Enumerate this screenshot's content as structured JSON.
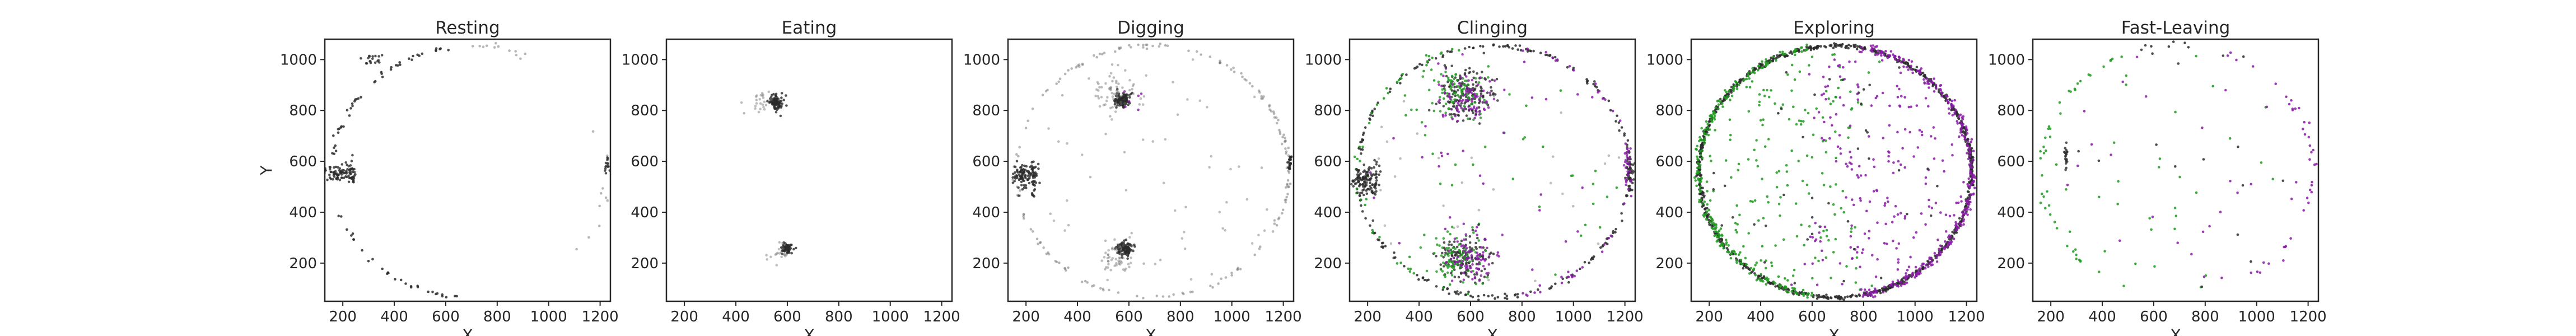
{
  "figure": {
    "palette": {
      "black": "#2b2b2b",
      "green": "#1f9b1f",
      "purple": "#8a1aa8",
      "gray": "#6e6e6e"
    }
  },
  "chart_data": [
    {
      "type": "scatter",
      "title": "Resting",
      "xlabel": "X",
      "ylabel": "Y",
      "xlim": [
        130,
        1240
      ],
      "ylim": [
        50,
        1080
      ],
      "xticks": [
        200,
        400,
        600,
        800,
        1000,
        1200
      ],
      "yticks": [
        200,
        400,
        600,
        800,
        1000
      ],
      "grid": false,
      "clusters": [
        {
          "color": "black",
          "x": 185,
          "y": 555,
          "sx": 25,
          "sy": 18,
          "n": 70
        },
        {
          "color": "black",
          "x": 235,
          "y": 545,
          "sx": 8,
          "sy": 30,
          "n": 25
        },
        {
          "color": "black",
          "x": 1225,
          "y": 580,
          "sx": 6,
          "sy": 20,
          "n": 14
        },
        {
          "color": "black",
          "x": 320,
          "y": 1000,
          "sx": 20,
          "sy": 12,
          "n": 18
        }
      ],
      "ring_points": [
        {
          "color": "black",
          "a0": 95,
          "a1": 175,
          "n": 45,
          "jitter": 6
        },
        {
          "color": "black",
          "a0": 200,
          "a1": 265,
          "n": 30,
          "jitter": 5
        },
        {
          "color": "gray",
          "a0": 60,
          "a1": 95,
          "n": 12,
          "jitter": 8
        },
        {
          "color": "gray",
          "a0": -40,
          "a1": 20,
          "n": 10,
          "jitter": 10
        }
      ],
      "scatter_points": []
    },
    {
      "type": "scatter",
      "title": "Eating",
      "xlabel": "X",
      "ylabel": "",
      "xlim": [
        130,
        1240
      ],
      "ylim": [
        50,
        1080
      ],
      "xticks": [
        200,
        400,
        600,
        800,
        1000,
        1200
      ],
      "yticks": [
        200,
        400,
        600,
        800,
        1000
      ],
      "grid": false,
      "clusters": [
        {
          "color": "black",
          "x": 555,
          "y": 830,
          "sx": 14,
          "sy": 14,
          "n": 90
        },
        {
          "color": "gray",
          "x": 500,
          "y": 840,
          "sx": 30,
          "sy": 25,
          "n": 25
        },
        {
          "color": "black",
          "x": 600,
          "y": 260,
          "sx": 10,
          "sy": 10,
          "n": 60
        },
        {
          "color": "gray",
          "x": 570,
          "y": 230,
          "sx": 20,
          "sy": 25,
          "n": 18
        }
      ],
      "ring_points": [],
      "scatter_points": []
    },
    {
      "type": "scatter",
      "title": "Digging",
      "xlabel": "X",
      "ylabel": "",
      "xlim": [
        130,
        1240
      ],
      "ylim": [
        50,
        1080
      ],
      "xticks": [
        200,
        400,
        600,
        800,
        1000,
        1200
      ],
      "yticks": [
        200,
        400,
        600,
        800,
        1000
      ],
      "grid": false,
      "clusters": [
        {
          "color": "black",
          "x": 185,
          "y": 540,
          "sx": 25,
          "sy": 25,
          "n": 90
        },
        {
          "color": "black",
          "x": 230,
          "y": 540,
          "sx": 8,
          "sy": 35,
          "n": 30
        },
        {
          "color": "black",
          "x": 575,
          "y": 840,
          "sx": 15,
          "sy": 14,
          "n": 110
        },
        {
          "color": "gray",
          "x": 545,
          "y": 870,
          "sx": 40,
          "sy": 35,
          "n": 60
        },
        {
          "color": "black",
          "x": 585,
          "y": 255,
          "sx": 15,
          "sy": 14,
          "n": 100
        },
        {
          "color": "gray",
          "x": 555,
          "y": 230,
          "sx": 40,
          "sy": 35,
          "n": 55
        },
        {
          "color": "black",
          "x": 1225,
          "y": 590,
          "sx": 6,
          "sy": 22,
          "n": 25
        },
        {
          "color": "purple",
          "x": 590,
          "y": 860,
          "sx": 40,
          "sy": 30,
          "n": 6
        }
      ],
      "ring_points": [
        {
          "color": "gray",
          "a0": 0,
          "a1": 360,
          "n": 180,
          "jitter": 5
        }
      ],
      "scatter_points": [
        {
          "color": "gray",
          "n": 60
        }
      ]
    },
    {
      "type": "scatter",
      "title": "Clinging",
      "xlabel": "X",
      "ylabel": "",
      "xlim": [
        130,
        1240
      ],
      "ylim": [
        50,
        1080
      ],
      "xticks": [
        200,
        400,
        600,
        800,
        1000,
        1200
      ],
      "yticks": [
        200,
        400,
        600,
        800,
        1000
      ],
      "grid": false,
      "clusters": [
        {
          "color": "black",
          "x": 185,
          "y": 525,
          "sx": 22,
          "sy": 30,
          "n": 80
        },
        {
          "color": "black",
          "x": 230,
          "y": 520,
          "sx": 8,
          "sy": 45,
          "n": 35
        },
        {
          "color": "black",
          "x": 575,
          "y": 860,
          "sx": 55,
          "sy": 50,
          "n": 160
        },
        {
          "color": "green",
          "x": 540,
          "y": 880,
          "sx": 55,
          "sy": 45,
          "n": 90
        },
        {
          "color": "purple",
          "x": 600,
          "y": 850,
          "sx": 55,
          "sy": 45,
          "n": 80
        },
        {
          "color": "black",
          "x": 575,
          "y": 225,
          "sx": 50,
          "sy": 45,
          "n": 140
        },
        {
          "color": "green",
          "x": 545,
          "y": 220,
          "sx": 50,
          "sy": 45,
          "n": 90
        },
        {
          "color": "purple",
          "x": 610,
          "y": 225,
          "sx": 50,
          "sy": 45,
          "n": 80
        },
        {
          "color": "black",
          "x": 1220,
          "y": 570,
          "sx": 8,
          "sy": 35,
          "n": 40
        },
        {
          "color": "purple",
          "x": 1215,
          "y": 580,
          "sx": 10,
          "sy": 45,
          "n": 30
        }
      ],
      "ring_points": [
        {
          "color": "black",
          "a0": 0,
          "a1": 360,
          "n": 220,
          "jitter": 5
        },
        {
          "color": "green",
          "a0": 100,
          "a1": 260,
          "n": 40,
          "jitter": 8
        },
        {
          "color": "purple",
          "a0": -80,
          "a1": 80,
          "n": 40,
          "jitter": 8
        }
      ],
      "scatter_points": [
        {
          "color": "green",
          "n": 45
        },
        {
          "color": "purple",
          "n": 35
        },
        {
          "color": "gray",
          "n": 30
        }
      ]
    },
    {
      "type": "scatter",
      "title": "Exploring",
      "xlabel": "X",
      "ylabel": "",
      "xlim": [
        130,
        1240
      ],
      "ylim": [
        50,
        1080
      ],
      "xticks": [
        200,
        400,
        600,
        800,
        1000,
        1200
      ],
      "yticks": [
        200,
        400,
        600,
        800,
        1000
      ],
      "grid": false,
      "clusters": [],
      "ring_points": [
        {
          "color": "black",
          "a0": 0,
          "a1": 360,
          "n": 900,
          "jitter": 4
        },
        {
          "color": "green",
          "a0": 100,
          "a1": 260,
          "n": 260,
          "jitter": 9
        },
        {
          "color": "purple",
          "a0": -80,
          "a1": 80,
          "n": 300,
          "jitter": 9
        }
      ],
      "scatter_points": [
        {
          "color": "green",
          "n": 170,
          "side": "left"
        },
        {
          "color": "purple",
          "n": 190,
          "side": "right"
        },
        {
          "color": "black",
          "n": 40
        }
      ]
    },
    {
      "type": "scatter",
      "title": "Fast-Leaving",
      "xlabel": "X",
      "ylabel": "",
      "xlim": [
        130,
        1240
      ],
      "ylim": [
        50,
        1080
      ],
      "xticks": [
        200,
        400,
        600,
        800,
        1000,
        1200
      ],
      "yticks": [
        200,
        400,
        600,
        800,
        1000
      ],
      "grid": false,
      "clusters": [
        {
          "color": "black",
          "x": 258,
          "y": 620,
          "sx": 4,
          "sy": 35,
          "n": 20
        }
      ],
      "ring_points": [
        {
          "color": "green",
          "a0": 110,
          "a1": 250,
          "n": 45,
          "jitter": 10
        },
        {
          "color": "purple",
          "a0": -70,
          "a1": 70,
          "n": 40,
          "jitter": 10
        },
        {
          "color": "black",
          "a0": 60,
          "a1": 120,
          "n": 10,
          "jitter": 10
        }
      ],
      "scatter_points": [
        {
          "color": "green",
          "n": 30
        },
        {
          "color": "purple",
          "n": 25
        },
        {
          "color": "black",
          "n": 12
        }
      ]
    }
  ]
}
